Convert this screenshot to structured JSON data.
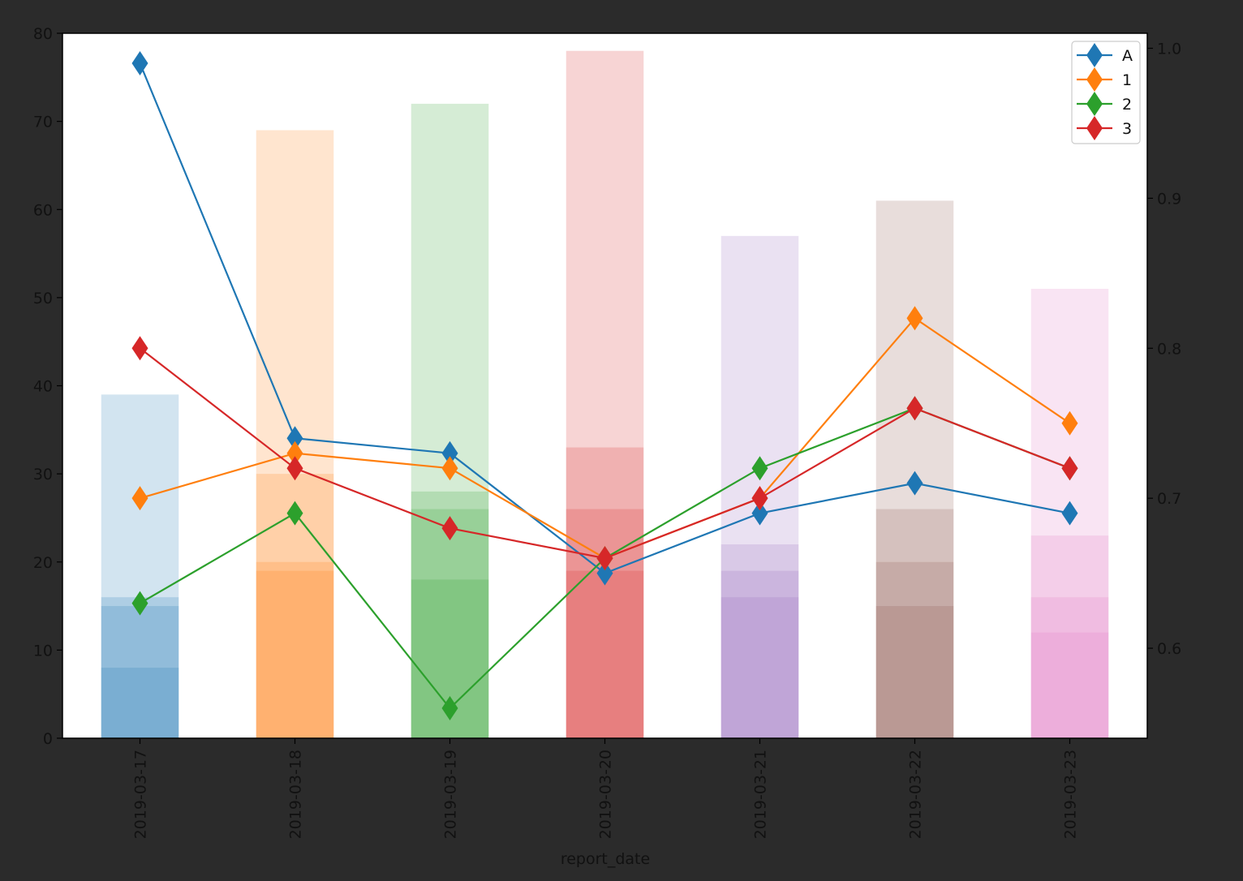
{
  "chart_data": {
    "type": "bar",
    "xlabel": "report_date",
    "categories": [
      "2019-03-17",
      "2019-03-18",
      "2019-03-19",
      "2019-03-20",
      "2019-03-21",
      "2019-03-22",
      "2019-03-23"
    ],
    "left_axis": {
      "ylim": [
        0,
        80
      ],
      "ticks": [
        0,
        10,
        20,
        30,
        40,
        50,
        60,
        70,
        80
      ]
    },
    "right_axis": {
      "ylim": [
        0.54,
        1.01
      ],
      "ticks": [
        0.6,
        0.7,
        0.8,
        0.9,
        1.0
      ]
    },
    "bar_colors": [
      "#1f77b4",
      "#ff7f0e",
      "#2ca02c",
      "#d62728",
      "#9467bd",
      "#8c564b",
      "#e377c2"
    ],
    "bar_layers": [
      {
        "opacity": 0.2,
        "values": [
          39,
          69,
          72,
          78,
          57,
          61,
          51
        ]
      },
      {
        "opacity": 0.2,
        "values": [
          16,
          30,
          28,
          33,
          22,
          26,
          23
        ]
      },
      {
        "opacity": 0.2,
        "values": [
          15,
          20,
          26,
          26,
          19,
          20,
          16
        ]
      },
      {
        "opacity": 0.2,
        "values": [
          8,
          19,
          18,
          19,
          16,
          15,
          12
        ]
      }
    ],
    "series": [
      {
        "name": "A",
        "color": "#1f77b4",
        "values": [
          0.99,
          0.74,
          0.73,
          0.65,
          0.69,
          0.71,
          0.69
        ]
      },
      {
        "name": "1",
        "color": "#ff7f0e",
        "values": [
          0.7,
          0.73,
          0.72,
          0.66,
          0.7,
          0.82,
          0.75
        ]
      },
      {
        "name": "2",
        "color": "#2ca02c",
        "values": [
          0.63,
          0.69,
          0.56,
          0.66,
          0.72,
          0.76,
          0.72
        ]
      },
      {
        "name": "3",
        "color": "#d62728",
        "values": [
          0.8,
          0.72,
          0.68,
          0.66,
          0.7,
          0.76,
          0.72
        ]
      }
    ],
    "legend_position": "top-right",
    "grid": false
  }
}
